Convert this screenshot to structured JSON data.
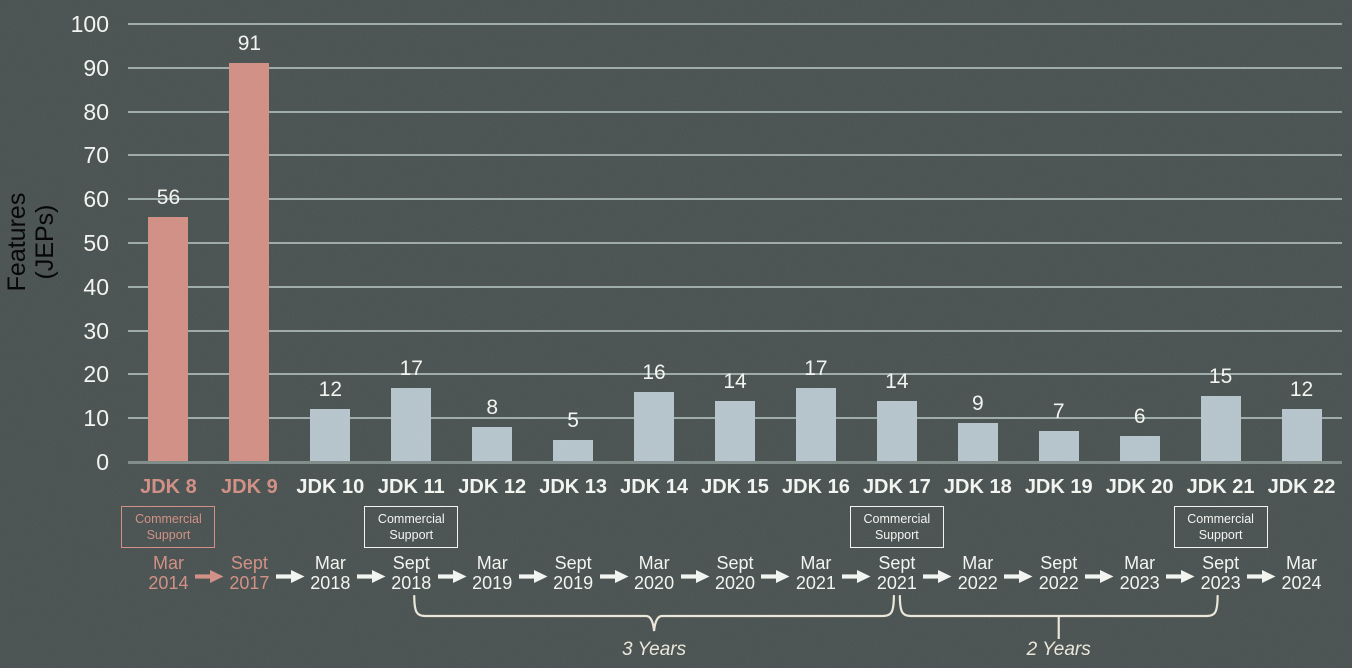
{
  "chart_data": {
    "type": "bar",
    "title": "",
    "xlabel": "",
    "ylabel": "Features (JEPs)",
    "ylim": [
      0,
      100
    ],
    "y_tick_step": 10,
    "grid": true,
    "legend": false,
    "categories": [
      "JDK 8",
      "JDK 9",
      "JDK 10",
      "JDK 11",
      "JDK 12",
      "JDK 13",
      "JDK 14",
      "JDK 15",
      "JDK 16",
      "JDK 17",
      "JDK 18",
      "JDK 19",
      "JDK 20",
      "JDK 21",
      "JDK 22"
    ],
    "values": [
      56,
      91,
      12,
      17,
      8,
      5,
      16,
      14,
      17,
      14,
      9,
      7,
      6,
      15,
      12
    ],
    "highlighted_categories": [
      "JDK 8",
      "JDK 9"
    ],
    "release_dates": [
      [
        "Mar",
        "2014"
      ],
      [
        "Sept",
        "2017"
      ],
      [
        "Mar",
        "2018"
      ],
      [
        "Sept",
        "2018"
      ],
      [
        "Mar",
        "2019"
      ],
      [
        "Sept",
        "2019"
      ],
      [
        "Mar",
        "2020"
      ],
      [
        "Sept",
        "2020"
      ],
      [
        "Mar",
        "2021"
      ],
      [
        "Sept",
        "2021"
      ],
      [
        "Mar",
        "2022"
      ],
      [
        "Sept",
        "2022"
      ],
      [
        "Mar",
        "2023"
      ],
      [
        "Sept",
        "2023"
      ],
      [
        "Mar",
        "2024"
      ]
    ],
    "commercial_support_categories": [
      "JDK 8",
      "JDK 11",
      "JDK 17",
      "JDK 21"
    ],
    "commercial_support_label": [
      "Commercial",
      "Support"
    ],
    "duration_brackets": [
      {
        "label": "3 Years",
        "from_release": "Sept 2018",
        "to_release": "Sept 2021",
        "pointer": "vee"
      },
      {
        "label": "2 Years",
        "from_release": "Sept 2021",
        "to_release": "Sept 2023",
        "pointer": "tick"
      }
    ]
  },
  "y_axis": {
    "title_line1": "Features",
    "title_line2": "(JEPs)",
    "ticks": [
      0,
      10,
      20,
      30,
      40,
      50,
      60,
      70,
      80,
      90,
      100
    ]
  },
  "colors": {
    "background": "#485150",
    "highlight_salmon": "#d08e83",
    "bar_blue_gray": "#b5c3cb",
    "gridline": "#9caaa8",
    "axis_line": "#7e8b88",
    "text_light": "#f2f4f0",
    "brace_cream": "#eae6d9"
  }
}
